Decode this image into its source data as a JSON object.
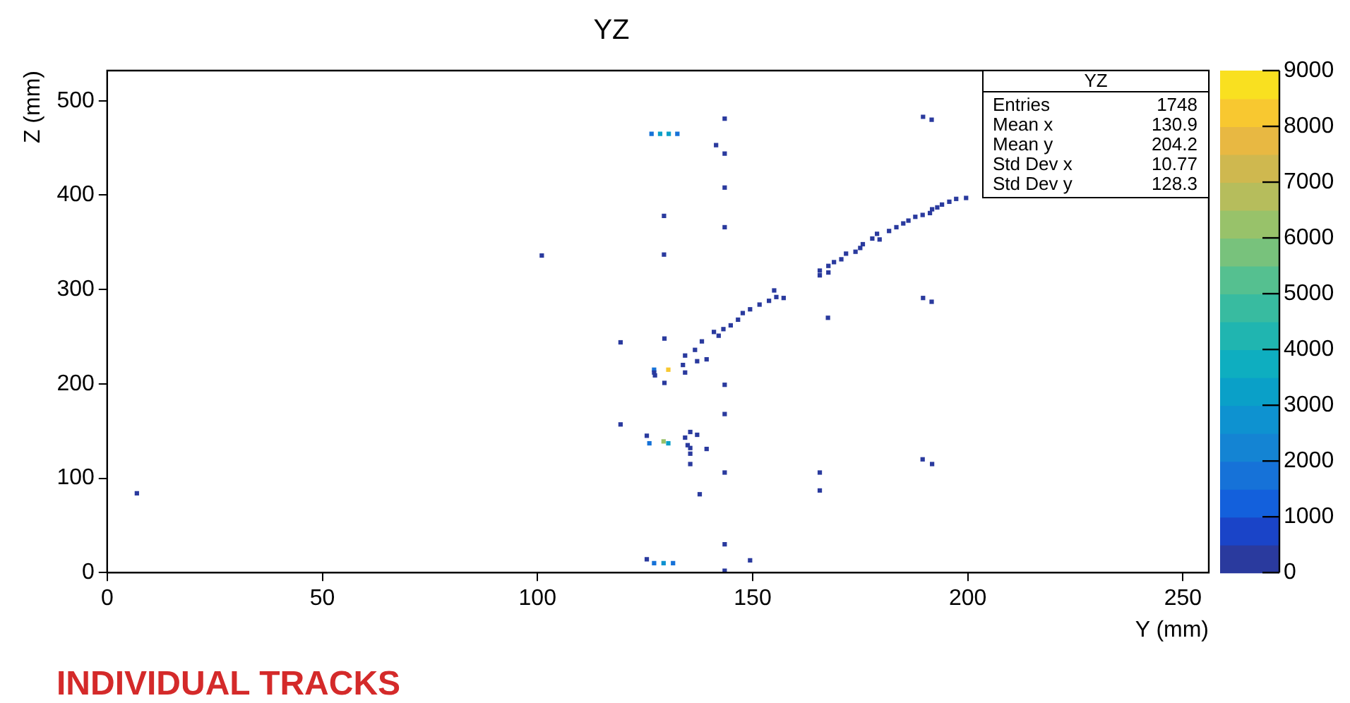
{
  "chart_data": {
    "type": "scatter",
    "title": "YZ",
    "xlabel": "Y (mm)",
    "ylabel": "Z (mm)",
    "x": [
      143.5,
      126.5,
      128.5,
      130.5,
      132.5,
      141.5,
      143.5,
      143.5,
      129.4,
      143.5,
      101,
      129.4,
      189.6,
      191.6,
      189.6,
      191.6,
      167.5,
      165.6,
      165.6,
      167.6,
      167.6,
      168.9,
      170.6,
      171.7,
      173.9,
      175,
      175.6,
      177.8,
      179.5,
      178.9,
      181.7,
      183.4,
      185,
      186.2,
      187.8,
      189.5,
      191.2,
      191.7,
      192.9,
      194,
      195.7,
      197.3,
      199.6,
      155,
      155.5,
      157.2,
      153.8,
      151.6,
      149.4,
      147.7,
      146.6,
      144.9,
      143.2,
      141,
      142.1,
      119.3,
      129.5,
      138.2,
      136.6,
      134.3,
      139.3,
      137.1,
      133.8,
      130.4,
      127.1,
      134.3,
      127.1,
      127.3,
      129.5,
      143.5,
      143.5,
      119.3,
      135.5,
      137.1,
      125.4,
      134.3,
      129.3,
      126,
      130.4,
      134.9,
      135.5,
      139.3,
      135.5,
      135.5,
      143.5,
      165.6,
      137.7,
      165.6,
      189.5,
      191.7,
      143.5,
      125.4,
      127.1,
      129.3,
      131.5,
      149.4,
      143.5,
      6.9
    ],
    "values": [
      481,
      465,
      465,
      465,
      465,
      453,
      444,
      408,
      378,
      366,
      336,
      337,
      483,
      480,
      291,
      287,
      270,
      315,
      320,
      318,
      325,
      329,
      332,
      338,
      340,
      344,
      348,
      354,
      353,
      359,
      362,
      366,
      370,
      373,
      377,
      379,
      381,
      385,
      387,
      390,
      393,
      396,
      397,
      299,
      292,
      291,
      288,
      284,
      279,
      275,
      268,
      262,
      258,
      255,
      251,
      244,
      248,
      245,
      236,
      230,
      226,
      224,
      220,
      215,
      215,
      212,
      212,
      209,
      201,
      199,
      168,
      157,
      149,
      146,
      145,
      143,
      139,
      137,
      137,
      135,
      132,
      131,
      126,
      115,
      106,
      106,
      83,
      87,
      120,
      115,
      30,
      14,
      10,
      10,
      10,
      13,
      2,
      84
    ],
    "colors": [
      "#2a3a9e",
      "#1672d8",
      "#0aa0c8",
      "#0aa0c8",
      "#1672d8",
      "#2a3a9e",
      "#2a3a9e",
      "#2a3a9e",
      "#2a3a9e",
      "#2a3a9e",
      "#2a3a9e",
      "#2a3a9e",
      "#2a3a9e",
      "#2a3a9e",
      "#2a3a9e",
      "#2a3a9e",
      "#2a3a9e",
      "#2a3a9e",
      "#2a3a9e",
      "#2a3a9e",
      "#2a3a9e",
      "#2a3a9e",
      "#2a3a9e",
      "#2a3a9e",
      "#2a3a9e",
      "#2a3a9e",
      "#2a3a9e",
      "#2a3a9e",
      "#2a3a9e",
      "#2a3a9e",
      "#2a3a9e",
      "#2a3a9e",
      "#2a3a9e",
      "#2a3a9e",
      "#2a3a9e",
      "#2a3a9e",
      "#2a3a9e",
      "#2a3a9e",
      "#2a3a9e",
      "#2a3a9e",
      "#2a3a9e",
      "#2a3a9e",
      "#2a3a9e",
      "#2a3a9e",
      "#2a3a9e",
      "#2a3a9e",
      "#2a3a9e",
      "#2a3a9e",
      "#2a3a9e",
      "#2a3a9e",
      "#2a3a9e",
      "#2a3a9e",
      "#2a3a9e",
      "#2a3a9e",
      "#2a3a9e",
      "#2a3a9e",
      "#2a3a9e",
      "#2a3a9e",
      "#2a3a9e",
      "#2a3a9e",
      "#2a3a9e",
      "#2a3a9e",
      "#2a3a9e",
      "#f8c830",
      "#1672d8",
      "#2a3a9e",
      "#2a3a9e",
      "#2a3a9e",
      "#2a3a9e",
      "#2a3a9e",
      "#2a3a9e",
      "#2a3a9e",
      "#2a3a9e",
      "#2a3a9e",
      "#2a3a9e",
      "#2a3a9e",
      "#98c26a",
      "#1672d8",
      "#0aa0c8",
      "#2a3a9e",
      "#2a3a9e",
      "#2a3a9e",
      "#2a3a9e",
      "#2a3a9e",
      "#2a3a9e",
      "#2a3a9e",
      "#2a3a9e",
      "#2a3a9e",
      "#2a3a9e",
      "#2a3a9e",
      "#2a3a9e",
      "#2a3a9e",
      "#1672d8",
      "#0e92d0",
      "#1672d8",
      "#2a3a9e",
      "#2a3a9e",
      "#2a3a9e"
    ],
    "xlim": [
      0,
      256
    ],
    "ylim": [
      0,
      532
    ],
    "xticks": [
      0,
      50,
      100,
      150,
      200,
      250
    ],
    "yticks": [
      0,
      100,
      200,
      300,
      400,
      500
    ],
    "clim": [
      0,
      9000
    ],
    "cticks": [
      0,
      1000,
      2000,
      3000,
      4000,
      5000,
      6000,
      7000,
      8000,
      9000
    ],
    "annotations": [
      "YZ",
      "Entries",
      "1748",
      "Mean x",
      "130.9",
      "Mean y",
      "204.2",
      "Std Dev x",
      "10.77",
      "Std Dev y",
      "128.3",
      "INDIVIDUAL TRACKS"
    ]
  }
}
